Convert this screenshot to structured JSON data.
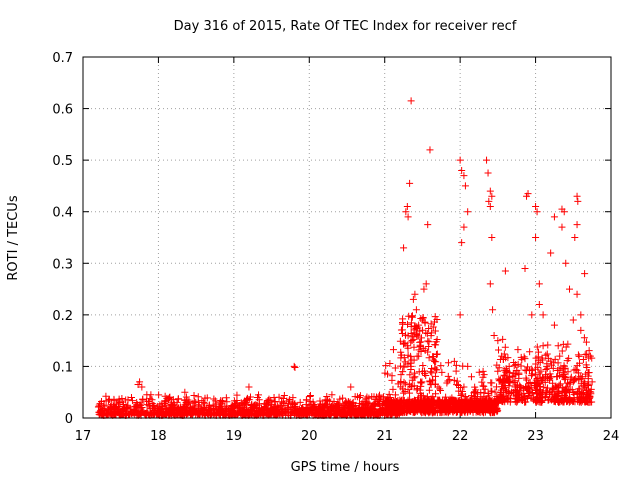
{
  "chart_data": {
    "type": "scatter",
    "title": "Day 316 of 2015, Rate Of TEC Index for receiver recf",
    "xlabel": "GPS time / hours",
    "ylabel": "ROTI / TECUs",
    "xlim": [
      17,
      24
    ],
    "ylim": [
      0,
      0.7
    ],
    "xticks": [
      "17",
      "18",
      "19",
      "20",
      "21",
      "22",
      "23",
      "24"
    ],
    "yticks": [
      "0",
      "0.1",
      "0.2",
      "0.3",
      "0.4",
      "0.5",
      "0.6",
      "0.7"
    ],
    "grid": true,
    "marker": "+",
    "series": [
      {
        "name": "ROTI",
        "color": "#ff0000",
        "points": [
          [
            17.75,
            0.07
          ],
          [
            17.73,
            0.065
          ],
          [
            17.78,
            0.06
          ],
          [
            19.2,
            0.06
          ],
          [
            19.8,
            0.1
          ],
          [
            19.81,
            0.098
          ],
          [
            20.55,
            0.06
          ],
          [
            20.3,
            0.045
          ],
          [
            18.35,
            0.05
          ],
          [
            17.9,
            0.045
          ],
          [
            21.25,
            0.33
          ],
          [
            21.28,
            0.4
          ],
          [
            21.3,
            0.41
          ],
          [
            21.31,
            0.39
          ],
          [
            21.33,
            0.455
          ],
          [
            21.35,
            0.615
          ],
          [
            21.38,
            0.23
          ],
          [
            21.4,
            0.24
          ],
          [
            21.42,
            0.21
          ],
          [
            21.45,
            0.18
          ],
          [
            21.5,
            0.19
          ],
          [
            21.52,
            0.25
          ],
          [
            21.55,
            0.26
          ],
          [
            21.57,
            0.375
          ],
          [
            21.6,
            0.52
          ],
          [
            21.3,
            0.14
          ],
          [
            21.35,
            0.1
          ],
          [
            21.4,
            0.08
          ],
          [
            21.45,
            0.12
          ],
          [
            21.5,
            0.09
          ],
          [
            21.6,
            0.07
          ],
          [
            22.0,
            0.5
          ],
          [
            22.02,
            0.48
          ],
          [
            22.05,
            0.47
          ],
          [
            22.07,
            0.45
          ],
          [
            22.1,
            0.4
          ],
          [
            22.02,
            0.34
          ],
          [
            22.05,
            0.37
          ],
          [
            22.0,
            0.2
          ],
          [
            22.1,
            0.1
          ],
          [
            22.15,
            0.08
          ],
          [
            22.05,
            0.06
          ],
          [
            22.2,
            0.05
          ],
          [
            22.35,
            0.5
          ],
          [
            22.37,
            0.475
          ],
          [
            22.4,
            0.44
          ],
          [
            22.42,
            0.43
          ],
          [
            22.38,
            0.42
          ],
          [
            22.4,
            0.41
          ],
          [
            22.42,
            0.35
          ],
          [
            22.4,
            0.26
          ],
          [
            22.43,
            0.21
          ],
          [
            22.45,
            0.16
          ],
          [
            22.5,
            0.15
          ],
          [
            22.55,
            0.12
          ],
          [
            22.6,
            0.285
          ],
          [
            22.65,
            0.1
          ],
          [
            22.7,
            0.08
          ],
          [
            22.75,
            0.05
          ],
          [
            22.8,
            0.06
          ],
          [
            22.78,
            0.04
          ],
          [
            22.88,
            0.43
          ],
          [
            22.9,
            0.435
          ],
          [
            22.86,
            0.29
          ],
          [
            22.95,
            0.2
          ],
          [
            23.0,
            0.41
          ],
          [
            23.02,
            0.4
          ],
          [
            23.0,
            0.35
          ],
          [
            23.05,
            0.26
          ],
          [
            23.05,
            0.22
          ],
          [
            23.1,
            0.2
          ],
          [
            23.1,
            0.14
          ],
          [
            23.15,
            0.1
          ],
          [
            23.2,
            0.08
          ],
          [
            23.25,
            0.39
          ],
          [
            23.2,
            0.32
          ],
          [
            23.25,
            0.18
          ],
          [
            23.3,
            0.14
          ],
          [
            23.32,
            0.12
          ],
          [
            23.35,
            0.405
          ],
          [
            23.38,
            0.4
          ],
          [
            23.35,
            0.37
          ],
          [
            23.4,
            0.3
          ],
          [
            23.45,
            0.25
          ],
          [
            23.5,
            0.19
          ],
          [
            23.55,
            0.43
          ],
          [
            23.56,
            0.42
          ],
          [
            23.55,
            0.375
          ],
          [
            23.52,
            0.35
          ],
          [
            23.55,
            0.24
          ],
          [
            23.6,
            0.2
          ],
          [
            23.6,
            0.17
          ],
          [
            23.65,
            0.28
          ],
          [
            23.62,
            0.08
          ],
          [
            23.65,
            0.06
          ],
          [
            23.7,
            0.05
          ],
          [
            23.75,
            0.07
          ],
          [
            23.5,
            0.07
          ],
          [
            23.45,
            0.05
          ],
          [
            23.4,
            0.04
          ],
          [
            23.35,
            0.035
          ],
          [
            23.3,
            0.06
          ],
          [
            23.28,
            0.08
          ]
        ]
      }
    ]
  }
}
